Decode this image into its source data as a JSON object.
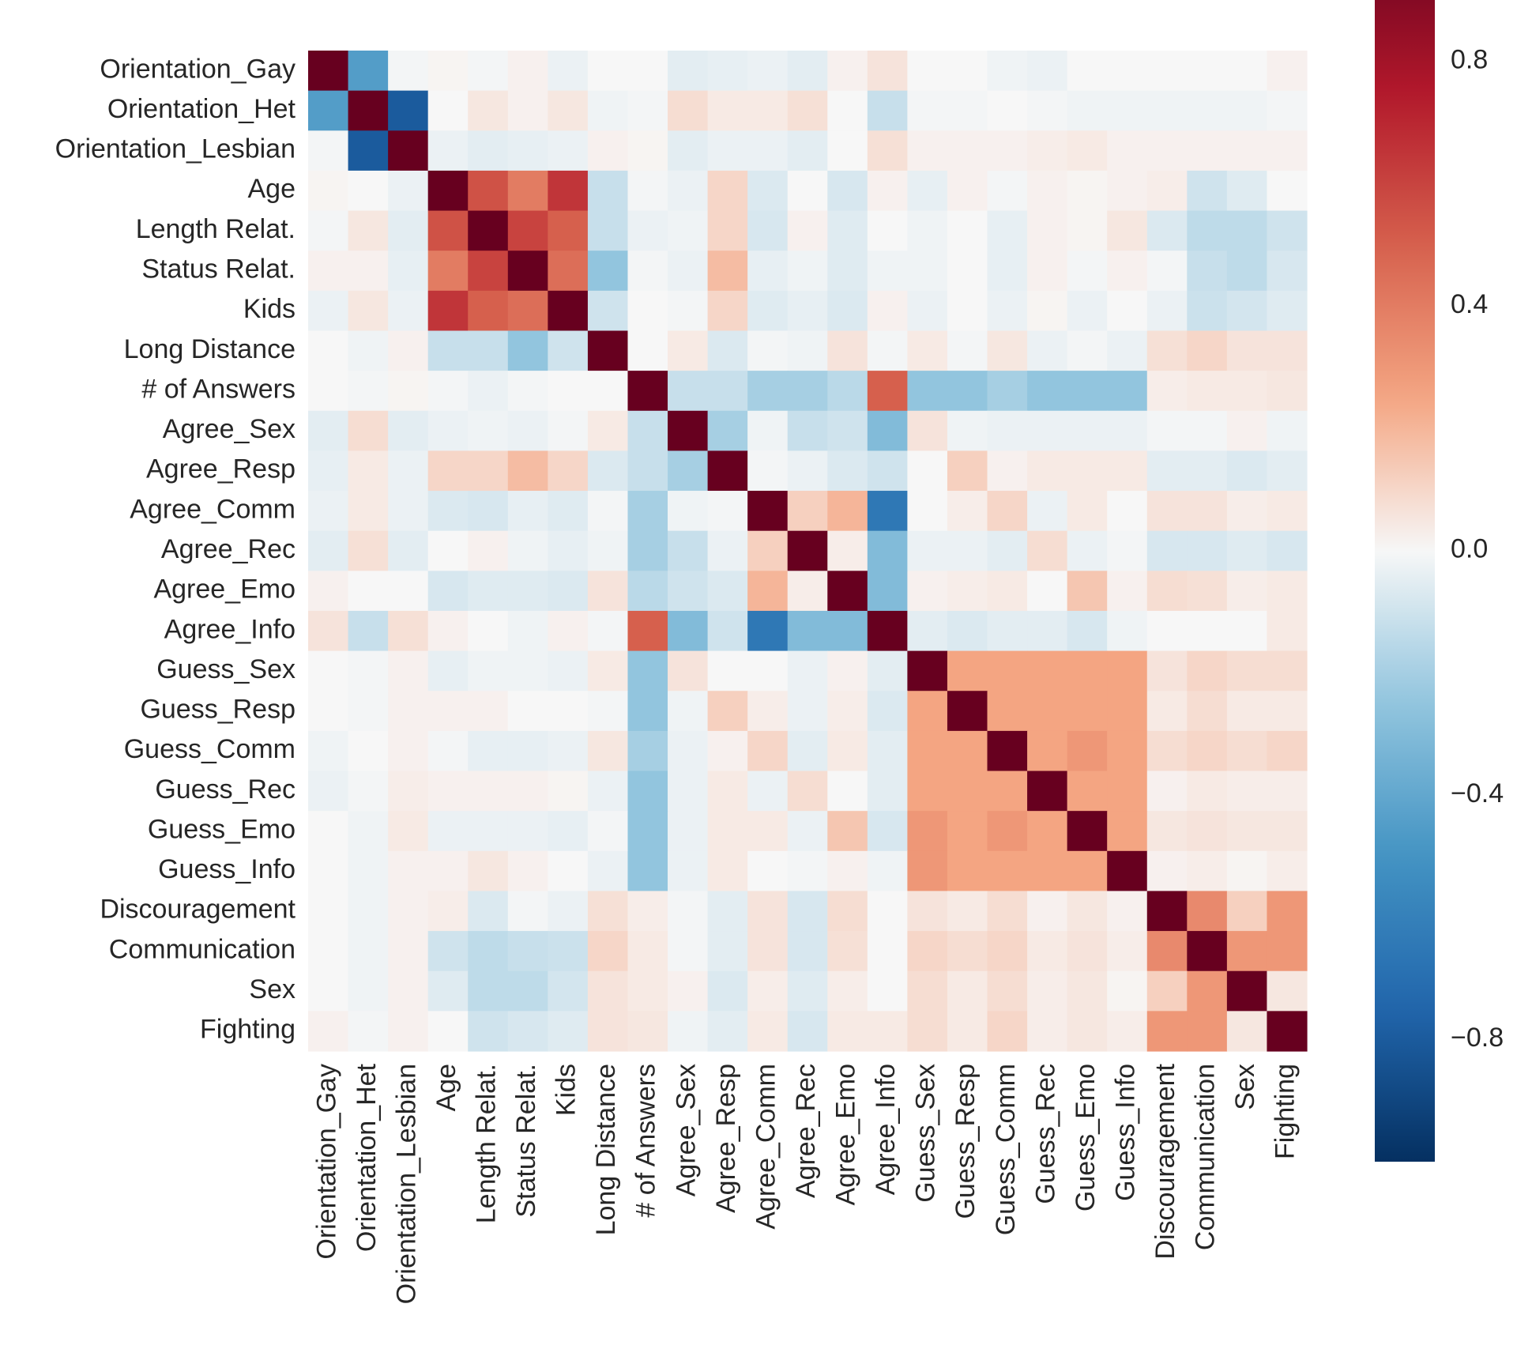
{
  "chart_data": {
    "type": "heatmap",
    "title": "",
    "xlabel": "",
    "ylabel": "",
    "labels": [
      "Orientation_Gay",
      "Orientation_Het",
      "Orientation_Lesbian",
      "Age",
      "Length Relat.",
      "Status Relat.",
      "Kids",
      "Long Distance",
      "# of Answers",
      "Agree_Sex",
      "Agree_Resp",
      "Agree_Comm",
      "Agree_Rec",
      "Agree_Emo",
      "Agree_Info",
      "Guess_Sex",
      "Guess_Resp",
      "Guess_Comm",
      "Guess_Rec",
      "Guess_Emo",
      "Guess_Info",
      "Discouragement",
      "Communication",
      "Sex",
      "Fighting"
    ],
    "colormap": "RdBu_r",
    "vmin": -1.0,
    "vmax": 0.9,
    "colorbar_ticks": [
      {
        "value": 0.8,
        "label": "0.8"
      },
      {
        "value": 0.4,
        "label": "0.4"
      },
      {
        "value": 0.0,
        "label": "0.0"
      },
      {
        "value": -0.4,
        "label": "−0.4"
      },
      {
        "value": -0.8,
        "label": "−0.8"
      }
    ],
    "grid": false,
    "values": [
      [
        1,
        -0.45,
        -0.01,
        0.01,
        -0.01,
        0.02,
        -0.03,
        0.0,
        0.0,
        -0.05,
        -0.04,
        -0.03,
        -0.05,
        0.02,
        0.06,
        0.0,
        0.0,
        -0.02,
        -0.03,
        0.0,
        0.0,
        0.0,
        0.0,
        0.0,
        0.02
      ],
      [
        -0.45,
        1,
        -0.8,
        0.0,
        0.05,
        0.02,
        0.05,
        -0.02,
        -0.01,
        0.08,
        0.04,
        0.04,
        0.07,
        0.0,
        -0.12,
        -0.01,
        -0.01,
        0.0,
        -0.01,
        -0.02,
        -0.02,
        -0.02,
        -0.02,
        -0.02,
        -0.01
      ],
      [
        -0.01,
        -0.8,
        1,
        -0.03,
        -0.05,
        -0.04,
        -0.03,
        0.02,
        0.01,
        -0.05,
        -0.03,
        -0.03,
        -0.05,
        0.0,
        0.07,
        0.02,
        0.02,
        0.02,
        0.03,
        0.04,
        0.02,
        0.02,
        0.02,
        0.02,
        0.02
      ],
      [
        0.01,
        0.0,
        -0.03,
        1,
        0.55,
        0.4,
        0.65,
        -0.12,
        -0.01,
        -0.03,
        0.1,
        -0.07,
        0.0,
        -0.08,
        0.02,
        -0.04,
        0.02,
        -0.01,
        0.02,
        0.01,
        0.02,
        0.03,
        -0.1,
        -0.06,
        0.0
      ],
      [
        -0.01,
        0.05,
        -0.05,
        0.55,
        1,
        0.6,
        0.5,
        -0.12,
        -0.03,
        -0.02,
        0.1,
        -0.08,
        0.02,
        -0.06,
        0.0,
        -0.02,
        0.0,
        -0.04,
        0.02,
        0.01,
        0.05,
        -0.07,
        -0.14,
        -0.14,
        -0.1
      ],
      [
        0.02,
        0.02,
        -0.04,
        0.4,
        0.6,
        1,
        0.45,
        -0.25,
        -0.01,
        -0.03,
        0.18,
        -0.04,
        -0.02,
        -0.06,
        -0.02,
        -0.02,
        0.0,
        -0.04,
        0.02,
        -0.01,
        0.02,
        -0.01,
        -0.12,
        -0.14,
        -0.08
      ],
      [
        -0.03,
        0.05,
        -0.03,
        0.65,
        0.5,
        0.45,
        1,
        -0.1,
        0.0,
        -0.01,
        0.1,
        -0.06,
        -0.04,
        -0.07,
        0.02,
        -0.03,
        0.0,
        -0.03,
        0.01,
        -0.03,
        0.0,
        -0.03,
        -0.11,
        -0.09,
        -0.06
      ],
      [
        0.0,
        -0.02,
        0.02,
        -0.12,
        -0.12,
        -0.25,
        -0.1,
        1,
        0.0,
        0.04,
        -0.07,
        -0.01,
        -0.02,
        0.06,
        -0.01,
        0.04,
        -0.01,
        0.05,
        -0.03,
        -0.01,
        -0.03,
        0.07,
        0.1,
        0.06,
        0.06
      ],
      [
        0.0,
        -0.01,
        0.01,
        -0.01,
        -0.03,
        -0.01,
        0.0,
        0.0,
        1,
        -0.12,
        -0.12,
        -0.2,
        -0.2,
        -0.15,
        0.5,
        -0.25,
        -0.25,
        -0.2,
        -0.25,
        -0.25,
        -0.25,
        0.03,
        0.04,
        0.04,
        0.05
      ],
      [
        -0.05,
        0.08,
        -0.05,
        -0.03,
        -0.02,
        -0.03,
        -0.01,
        0.04,
        -0.12,
        1,
        -0.2,
        -0.02,
        -0.12,
        -0.1,
        -0.3,
        0.06,
        -0.02,
        -0.03,
        -0.03,
        -0.03,
        -0.03,
        -0.01,
        -0.01,
        0.02,
        -0.02
      ],
      [
        -0.04,
        0.04,
        -0.03,
        0.1,
        0.1,
        0.18,
        0.1,
        -0.07,
        -0.12,
        -0.2,
        1,
        -0.01,
        -0.03,
        -0.07,
        -0.1,
        0.0,
        0.12,
        0.02,
        0.04,
        0.04,
        0.04,
        -0.05,
        -0.05,
        -0.07,
        -0.05
      ],
      [
        -0.03,
        0.04,
        -0.03,
        -0.07,
        -0.08,
        -0.04,
        -0.06,
        -0.01,
        -0.2,
        -0.02,
        -0.01,
        1,
        0.12,
        0.2,
        -0.65,
        0.0,
        0.03,
        0.1,
        -0.03,
        0.04,
        0.0,
        0.06,
        0.06,
        0.03,
        0.04
      ],
      [
        -0.05,
        0.07,
        -0.05,
        0.0,
        0.02,
        -0.02,
        -0.04,
        -0.02,
        -0.2,
        -0.12,
        -0.03,
        0.12,
        1,
        0.03,
        -0.3,
        -0.03,
        -0.03,
        -0.05,
        0.08,
        -0.03,
        -0.01,
        -0.08,
        -0.08,
        -0.06,
        -0.08
      ],
      [
        0.02,
        0.0,
        0.0,
        -0.08,
        -0.06,
        -0.06,
        -0.07,
        0.06,
        -0.15,
        -0.1,
        -0.07,
        0.2,
        0.03,
        1,
        -0.3,
        0.02,
        0.03,
        0.04,
        0.0,
        0.15,
        0.02,
        0.08,
        0.07,
        0.03,
        0.04
      ],
      [
        0.06,
        -0.12,
        0.07,
        0.02,
        0.0,
        -0.02,
        0.02,
        -0.01,
        0.5,
        -0.3,
        -0.1,
        -0.65,
        -0.3,
        -0.3,
        1,
        -0.05,
        -0.07,
        -0.05,
        -0.05,
        -0.08,
        -0.02,
        0.0,
        0.0,
        0.0,
        0.04
      ],
      [
        0.0,
        -0.01,
        0.02,
        -0.04,
        -0.02,
        -0.02,
        -0.03,
        0.04,
        -0.25,
        0.06,
        0.0,
        0.0,
        -0.03,
        0.02,
        -0.05,
        1,
        0.25,
        0.25,
        0.25,
        0.25,
        0.25,
        0.06,
        0.1,
        0.08,
        0.08
      ],
      [
        0.0,
        -0.01,
        0.02,
        0.02,
        0.02,
        0.0,
        0.0,
        -0.01,
        -0.25,
        -0.02,
        0.12,
        0.03,
        -0.03,
        0.03,
        -0.07,
        0.25,
        1,
        0.25,
        0.25,
        0.25,
        0.25,
        0.04,
        0.08,
        0.04,
        0.04
      ],
      [
        -0.02,
        0.0,
        0.02,
        -0.01,
        -0.04,
        -0.04,
        -0.03,
        0.05,
        -0.2,
        -0.03,
        0.02,
        0.1,
        -0.05,
        0.04,
        -0.05,
        0.25,
        0.25,
        1,
        0.25,
        0.3,
        0.25,
        0.08,
        0.1,
        0.08,
        0.1
      ],
      [
        -0.03,
        -0.01,
        0.03,
        0.02,
        0.02,
        0.02,
        0.01,
        -0.03,
        -0.25,
        -0.03,
        0.04,
        -0.03,
        0.08,
        0.0,
        -0.05,
        0.25,
        0.25,
        0.25,
        1,
        0.25,
        0.25,
        0.02,
        0.04,
        0.03,
        0.03
      ],
      [
        0.0,
        -0.02,
        0.04,
        -0.03,
        -0.03,
        -0.03,
        -0.04,
        -0.01,
        -0.25,
        -0.03,
        0.04,
        0.04,
        -0.03,
        0.15,
        -0.08,
        0.3,
        0.25,
        0.3,
        0.25,
        1,
        0.25,
        0.05,
        0.06,
        0.05,
        0.05
      ],
      [
        0.0,
        -0.02,
        0.02,
        0.02,
        0.05,
        0.02,
        0.0,
        -0.03,
        -0.25,
        -0.03,
        0.04,
        0.0,
        -0.01,
        0.02,
        -0.02,
        0.3,
        0.25,
        0.25,
        0.25,
        0.25,
        1,
        0.02,
        0.03,
        0.01,
        0.03
      ],
      [
        0.0,
        -0.02,
        0.02,
        0.03,
        -0.07,
        -0.01,
        -0.03,
        0.07,
        0.03,
        -0.01,
        -0.05,
        0.06,
        -0.08,
        0.08,
        0.0,
        0.06,
        0.04,
        0.08,
        0.02,
        0.05,
        0.02,
        1,
        0.35,
        0.12,
        0.3
      ],
      [
        0.0,
        -0.02,
        0.02,
        -0.1,
        -0.14,
        -0.12,
        -0.11,
        0.1,
        0.04,
        -0.01,
        -0.05,
        0.06,
        -0.08,
        0.07,
        0.0,
        0.1,
        0.08,
        0.1,
        0.04,
        0.06,
        0.03,
        0.35,
        1,
        0.3,
        0.3
      ],
      [
        0.0,
        -0.02,
        0.02,
        -0.06,
        -0.14,
        -0.14,
        -0.09,
        0.06,
        0.04,
        0.02,
        -0.07,
        0.03,
        -0.06,
        0.03,
        0.0,
        0.08,
        0.04,
        0.08,
        0.03,
        0.05,
        0.01,
        0.12,
        0.3,
        1,
        0.05
      ],
      [
        0.02,
        -0.01,
        0.02,
        0.0,
        -0.1,
        -0.08,
        -0.06,
        0.06,
        0.05,
        -0.02,
        -0.05,
        0.04,
        -0.08,
        0.04,
        0.04,
        0.08,
        0.04,
        0.1,
        0.03,
        0.05,
        0.03,
        0.3,
        0.3,
        0.05,
        1
      ]
    ]
  }
}
